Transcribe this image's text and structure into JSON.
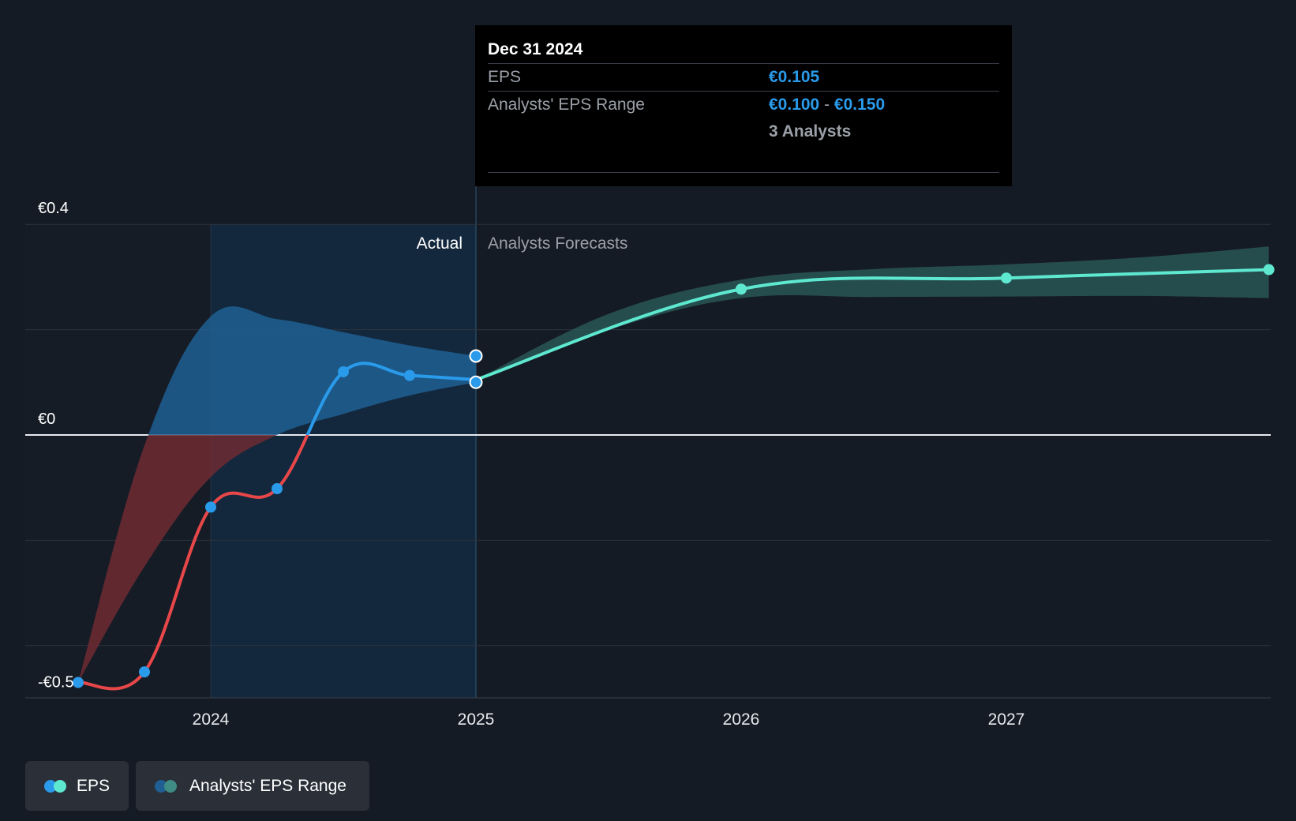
{
  "colors": {
    "background": "#151b24",
    "actual_past_negative": "#e84749",
    "actual_past_positive": "#2a9bea",
    "forecast_line": "#5ee8d0",
    "range_fill_blue": "#1f5f93",
    "range_fill_red": "#6e2a33",
    "forecast_range_fill": "#2a5a58",
    "gridline": "#2d333c"
  },
  "tooltip": {
    "date": "Dec 31 2024",
    "eps_label": "EPS",
    "eps_value": "€0.105",
    "range_label": "Analysts' EPS Range",
    "range_low": "€0.100",
    "range_sep": "-",
    "range_high": "€0.150",
    "analysts": "3 Analysts"
  },
  "legend": {
    "eps_label": "EPS",
    "range_label": "Analysts' EPS Range"
  },
  "chart_data": {
    "type": "line",
    "x_unit": "year",
    "xlim": [
      2023.3,
      2027.9
    ],
    "ylim": [
      -0.5,
      0.4
    ],
    "y_tick_labels": [
      {
        "value": 0.4,
        "label": "€0.4"
      },
      {
        "value": 0,
        "label": "€0"
      },
      {
        "value": -0.5,
        "label": "-€0.5"
      }
    ],
    "y_gridlines": [
      0.4,
      0.2,
      0,
      -0.2,
      -0.4
    ],
    "x_ticks": [
      2024,
      2025,
      2026,
      2027
    ],
    "x_tick_labels": [
      "2024",
      "2025",
      "2026",
      "2027"
    ],
    "grid": true,
    "legend_position": "bottom-left",
    "actual_label": "Actual",
    "forecast_label": "Analysts Forecasts",
    "divider_x": 2025,
    "highlight_region": [
      2024,
      2025
    ],
    "series": [
      {
        "name": "EPS",
        "segment": "actual",
        "x": [
          2023.5,
          2023.75,
          2024.0,
          2024.25,
          2024.5,
          2024.75,
          2025.0
        ],
        "y": [
          -0.47,
          -0.45,
          -0.137,
          -0.102,
          0.12,
          0.113,
          0.105
        ]
      },
      {
        "name": "EPS",
        "segment": "forecast",
        "x": [
          2025.0,
          2026.0,
          2027.0,
          2027.99
        ],
        "y": [
          0.105,
          0.277,
          0.298,
          0.314
        ]
      },
      {
        "name": "Analysts' EPS Range",
        "segment": "past_range",
        "x": [
          2023.5,
          2023.75,
          2024.0,
          2024.25,
          2024.5,
          2024.75,
          2025.0
        ],
        "low": [
          -0.47,
          -0.25,
          -0.08,
          0.0,
          0.04,
          0.075,
          0.1
        ],
        "high": [
          -0.47,
          -0.02,
          0.225,
          0.22,
          0.195,
          0.17,
          0.15
        ]
      },
      {
        "name": "Analysts' EPS Range",
        "segment": "forecast_range",
        "x": [
          2025.0,
          2025.5,
          2026.0,
          2026.5,
          2027.0,
          2027.5,
          2027.99
        ],
        "low": [
          0.105,
          0.2,
          0.26,
          0.262,
          0.263,
          0.264,
          0.26
        ],
        "high": [
          0.105,
          0.23,
          0.295,
          0.315,
          0.324,
          0.337,
          0.358
        ]
      }
    ],
    "markers": {
      "actual": [
        [
          2023.5,
          -0.47
        ],
        [
          2023.75,
          -0.45
        ],
        [
          2024.0,
          -0.137
        ],
        [
          2024.25,
          -0.102
        ],
        [
          2024.5,
          0.12
        ],
        [
          2024.75,
          0.113
        ]
      ],
      "forecast": [
        [
          2026.0,
          0.277
        ],
        [
          2027.0,
          0.298
        ],
        [
          2027.99,
          0.314
        ]
      ],
      "highlighted": [
        [
          2025.0,
          0.15
        ],
        [
          2025.0,
          0.1
        ]
      ]
    }
  }
}
